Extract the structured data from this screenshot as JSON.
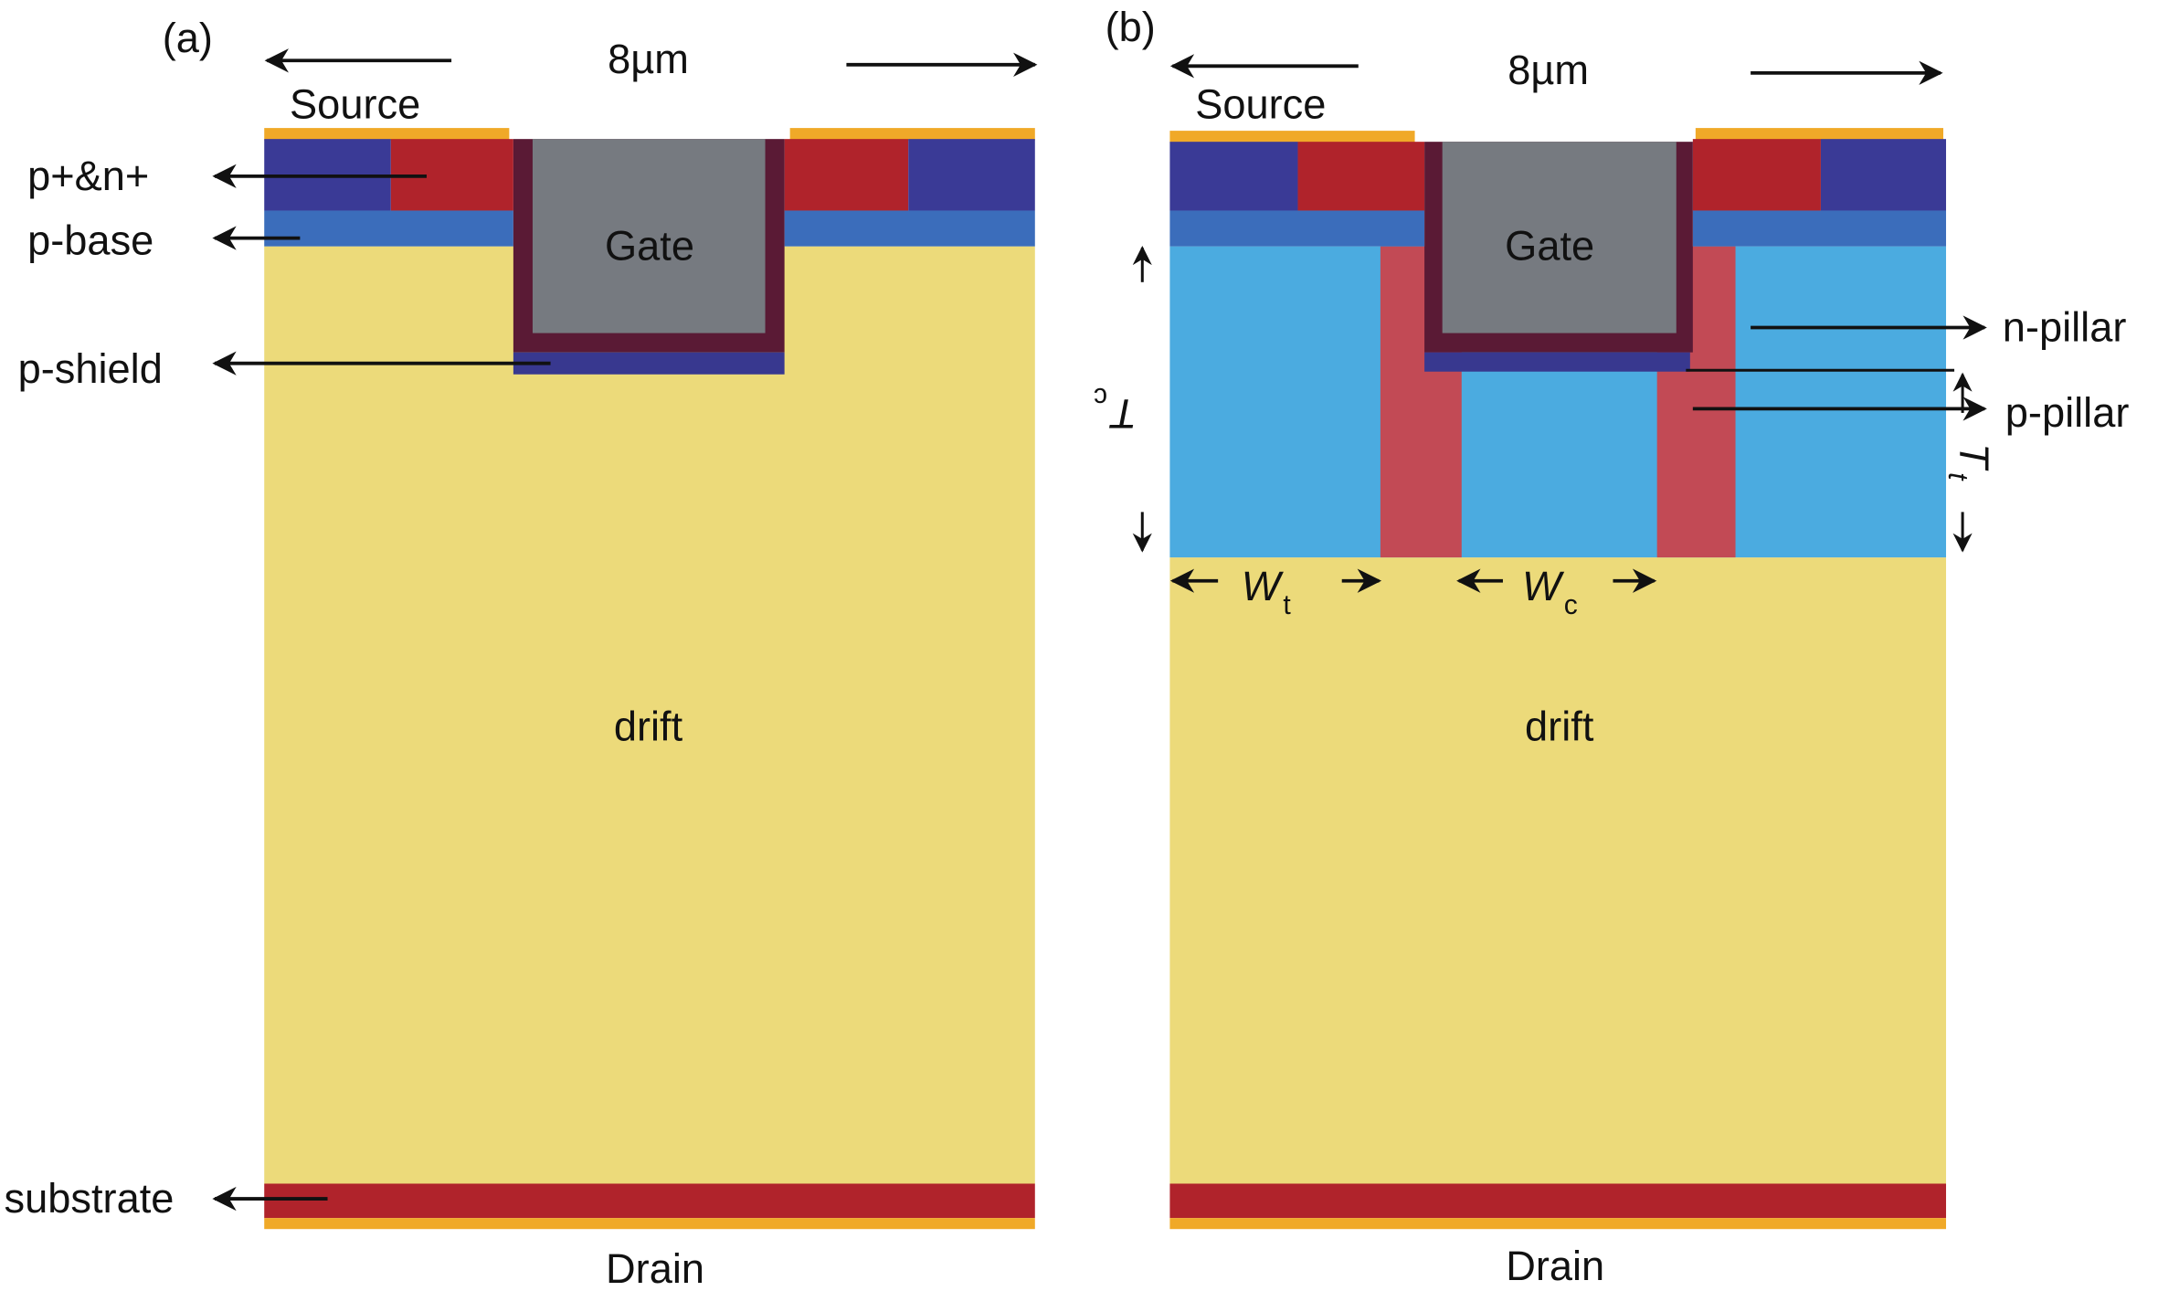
{
  "panel_a": {
    "tag": "(a)",
    "width_label": "8µm",
    "source": "Source",
    "gate": "Gate",
    "drift": "drift",
    "drain": "Drain",
    "callouts": {
      "pn_plus": "p+&n+",
      "p_base": "p-base",
      "p_shield": "p-shield",
      "substrate": "substrate"
    }
  },
  "panel_b": {
    "tag": "(b)",
    "width_label": "8µm",
    "source": "Source",
    "gate": "Gate",
    "drift": "drift",
    "drain": "Drain",
    "callouts": {
      "n_pillar": "n-pillar",
      "p_pillar": "p-pillar"
    },
    "dimensions": {
      "tc": {
        "main": "T",
        "sub": "c"
      },
      "tt": {
        "main": "T",
        "sub": "t"
      },
      "wt": {
        "main": "W",
        "sub": "t"
      },
      "wc": {
        "main": "W",
        "sub": "c"
      }
    }
  },
  "colors": {
    "metal": "#f0a928",
    "p_plus": "#3a3a96",
    "n_plus": "#b0232b",
    "p_base": "#3b6dbb",
    "drift": "#ecda7a",
    "oxide": "#5a1a35",
    "gate": "#767a80",
    "p_shield": "#38388f",
    "substrate": "#b0232b",
    "n_pillar": "#4babe0",
    "p_pillar": "#c24a55"
  }
}
